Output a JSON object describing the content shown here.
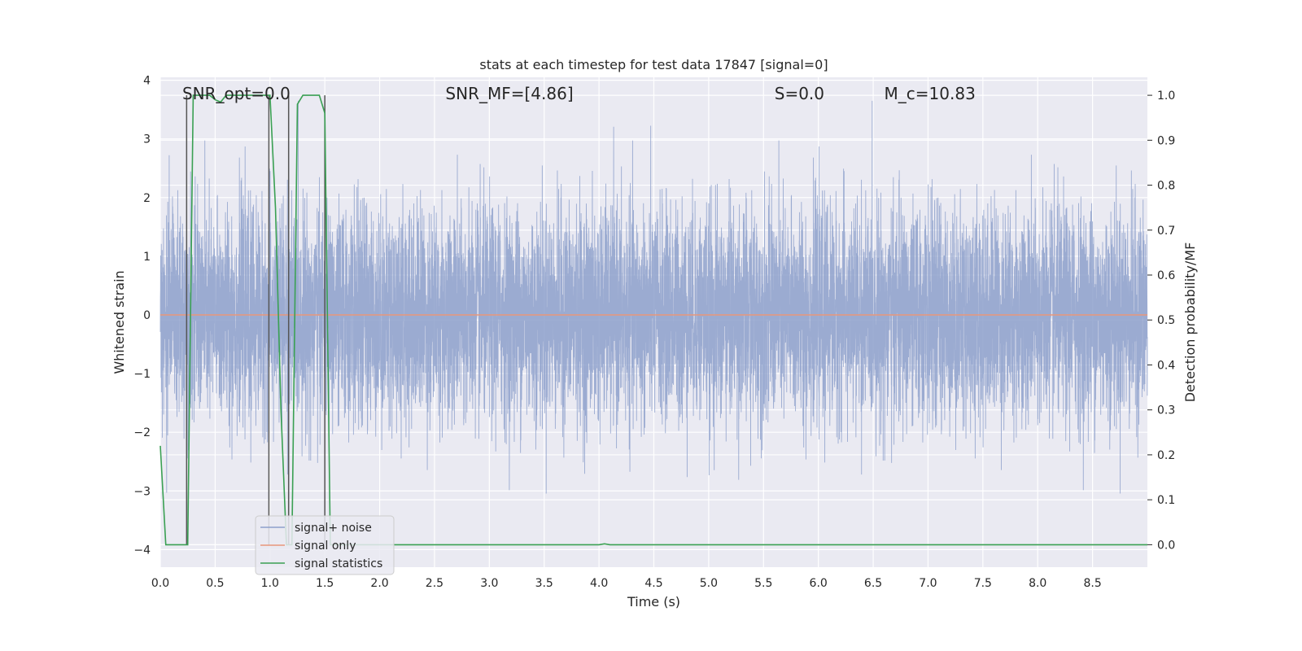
{
  "chart_data": {
    "type": "line",
    "title": "stats at each timestep for test data 17847 [signal=0]",
    "xlabel": "Time (s)",
    "ylabel": "Whitened strain",
    "y2label": "Detection probability/MF",
    "xlim": [
      0.0,
      9.0
    ],
    "ylim": [
      -4.3,
      4.05
    ],
    "y2lim": [
      -0.05,
      1.04
    ],
    "xticks": [
      0.0,
      0.5,
      1.0,
      1.5,
      2.0,
      2.5,
      3.0,
      3.5,
      4.0,
      4.5,
      5.0,
      5.5,
      6.0,
      6.5,
      7.0,
      7.5,
      8.0,
      8.5
    ],
    "xtick_labels": [
      "0.0",
      "0.5",
      "1.0",
      "1.5",
      "2.0",
      "2.5",
      "3.0",
      "3.5",
      "4.0",
      "4.5",
      "5.0",
      "5.5",
      "6.0",
      "6.5",
      "7.0",
      "7.5",
      "8.0",
      "8.5"
    ],
    "yticks": [
      -4,
      -3,
      -2,
      -1,
      0,
      1,
      2,
      3,
      4
    ],
    "ytick_labels": [
      "−4",
      "−3",
      "−2",
      "−1",
      "0",
      "1",
      "2",
      "3",
      "4"
    ],
    "y2ticks": [
      0.0,
      0.1,
      0.2,
      0.3,
      0.4,
      0.5,
      0.6,
      0.7,
      0.8,
      0.9,
      1.0
    ],
    "y2tick_labels": [
      "0.0",
      "0.1",
      "0.2",
      "0.3",
      "0.4",
      "0.5",
      "0.6",
      "0.7",
      "0.8",
      "0.9",
      "1.0"
    ],
    "annotations": [
      {
        "text": "SNR_opt=0.0",
        "x": 0.2
      },
      {
        "text": "SNR_MF=[4.86]",
        "x": 2.6
      },
      {
        "text": "S=0.0",
        "x": 5.6
      },
      {
        "text": "M_c=10.83",
        "x": 6.6
      }
    ],
    "legend": {
      "location": "lower left",
      "entries": [
        "signal+ noise",
        "signal only",
        "signal statistics"
      ]
    },
    "series": [
      {
        "name": "signal+ noise",
        "color": "#8da0cb",
        "axis": "left",
        "description": "whitened noise, approx. Gaussian, envelope about ±1.7 with spikes to ±3.6",
        "samples": 9000,
        "range": [
          -4.0,
          3.65
        ]
      },
      {
        "name": "signal only",
        "color": "#e8967a",
        "axis": "left",
        "x": [
          0.0,
          9.0
        ],
        "values": [
          0.0,
          0.0
        ]
      },
      {
        "name": "signal statistics",
        "color": "#3aa053",
        "axis": "right",
        "x": [
          0.0,
          0.05,
          0.1,
          0.15,
          0.2,
          0.25,
          0.3,
          0.35,
          0.4,
          0.45,
          0.5,
          0.55,
          0.6,
          0.65,
          0.7,
          0.75,
          0.8,
          0.85,
          0.9,
          0.95,
          1.0,
          1.05,
          1.1,
          1.15,
          1.2,
          1.25,
          1.3,
          1.35,
          1.4,
          1.45,
          1.5,
          1.55,
          1.6,
          1.7,
          2.0,
          3.0,
          4.0,
          4.05,
          4.1,
          4.2,
          5.0,
          6.0,
          7.0,
          8.0,
          9.0
        ],
        "values": [
          0.22,
          0.0,
          0.0,
          0.0,
          0.0,
          0.0,
          1.0,
          1.0,
          1.0,
          1.0,
          0.99,
          0.985,
          1.0,
          1.0,
          1.0,
          1.0,
          1.0,
          1.0,
          1.0,
          1.0,
          1.0,
          0.75,
          0.3,
          0.0,
          0.0,
          0.98,
          1.0,
          1.0,
          1.0,
          1.0,
          0.96,
          0.0,
          0.0,
          0.0,
          0.0,
          0.0,
          0.0,
          0.002,
          0.0,
          0.0,
          0.0,
          0.0,
          0.0,
          0.0,
          0.0
        ]
      },
      {
        "name": "vertical markers",
        "color": "#555555",
        "axis": "right",
        "x": [
          0.24,
          0.99,
          1.17,
          1.5
        ],
        "values": [
          1.0,
          1.0,
          1.0,
          1.0
        ]
      }
    ]
  }
}
